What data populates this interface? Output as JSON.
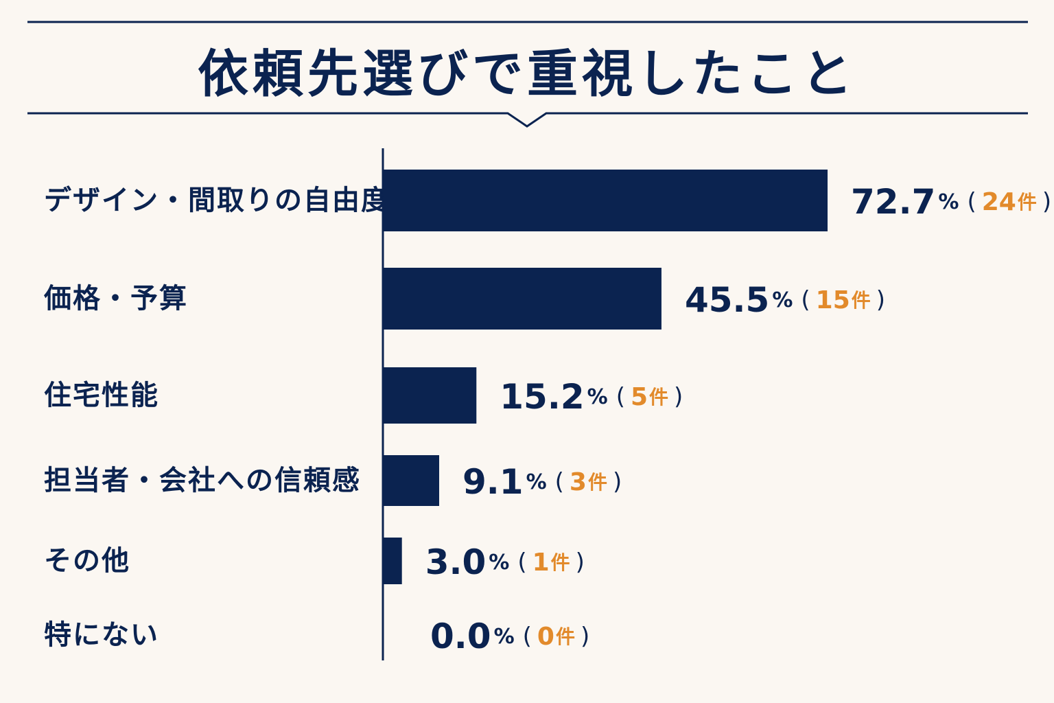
{
  "colors": {
    "background": "#fbf7f2",
    "navy": "#0b2350",
    "accent_orange": "#e28a2b"
  },
  "chart_data": {
    "type": "bar",
    "orientation": "horizontal",
    "title": "依頼先選びで重視したこと",
    "categories": [
      "デザイン・間取りの自由度",
      "価格・予算",
      "住宅性能",
      "担当者・会社への信頼感",
      "その他",
      "特にない"
    ],
    "values": [
      72.7,
      45.5,
      15.2,
      9.1,
      3.0,
      0.0
    ],
    "value_labels": [
      "72.7",
      "45.5",
      "15.2",
      "9.1",
      "3.0",
      "0.0"
    ],
    "value_unit": "%",
    "counts": [
      "24",
      "15",
      "5",
      "3",
      "1",
      "0"
    ],
    "count_unit": "件",
    "open_paren": "(",
    "close_paren": ")",
    "xlim": [
      0,
      100
    ],
    "grid": false,
    "legend": false
  }
}
